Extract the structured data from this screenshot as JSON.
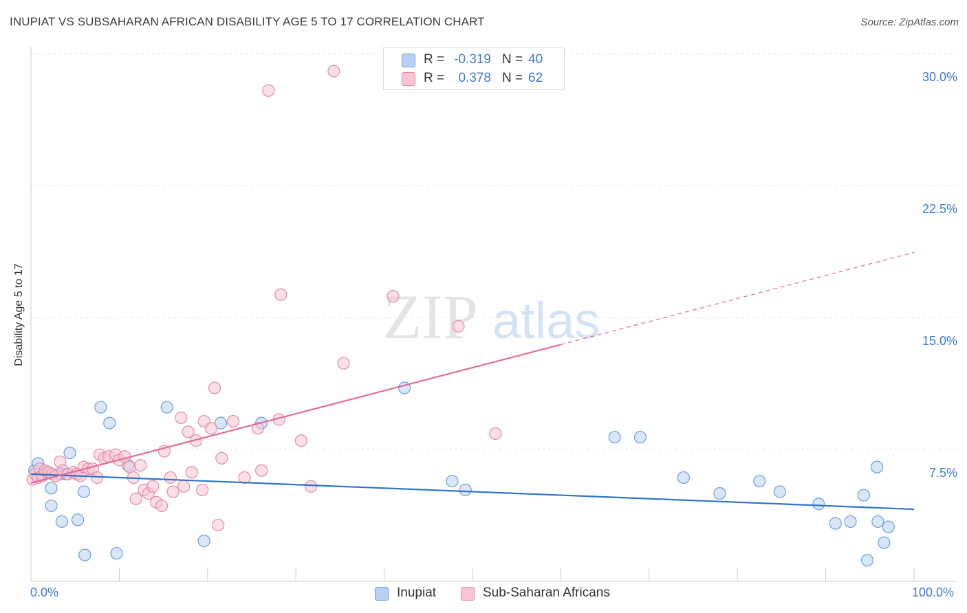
{
  "header": {
    "title": "INUPIAT VS SUBSAHARAN AFRICAN DISABILITY AGE 5 TO 17 CORRELATION CHART",
    "source": "Source: ZipAtlas.com"
  },
  "watermark": {
    "zip": "ZIP",
    "atlas": "atlas"
  },
  "legend_top": {
    "rows": [
      {
        "r_label": "R =",
        "r_value": "-0.319",
        "n_label": "N =",
        "n_value": "40"
      },
      {
        "r_label": "R =",
        "r_value": "0.378",
        "n_label": "N =",
        "n_value": "62"
      }
    ]
  },
  "legend_bottom": {
    "items": [
      "Inupiat",
      "Sub-Saharan Africans"
    ]
  },
  "colors": {
    "inupiat_fill": "#b8d1f3",
    "inupiat_stroke": "#6a9de0",
    "inupiat_line": "#2f74c9",
    "ssa_fill": "#f8c4d3",
    "ssa_stroke": "#e88aa8",
    "ssa_line": "#e36a94",
    "tick_text": "#3d7bd4",
    "grid": "#e2e2e2"
  },
  "chart_data": {
    "type": "scatter",
    "title": "INUPIAT VS SUBSAHARAN AFRICAN DISABILITY AGE 5 TO 17 CORRELATION CHART",
    "xlabel": "",
    "ylabel": "Disability Age 5 to 17",
    "xlim": [
      0,
      100
    ],
    "ylim": [
      0,
      30
    ],
    "x_tick_labels": [
      "0.0%",
      "100.0%"
    ],
    "y_ticks": [
      7.5,
      15.0,
      22.5,
      30.0
    ],
    "y_tick_labels": [
      "7.5%",
      "15.0%",
      "22.5%",
      "30.0%"
    ],
    "grid": true,
    "legend_placement": "bottom-center",
    "series": [
      {
        "name": "Inupiat",
        "r": -0.319,
        "n": 40,
        "trend": {
          "x": [
            0,
            100
          ],
          "y": [
            6.1,
            4.1
          ],
          "dashed_from_x": null
        },
        "points": [
          {
            "x": 0.4,
            "y": 6.3
          },
          {
            "x": 0.8,
            "y": 6.7
          },
          {
            "x": 1.2,
            "y": 6.0
          },
          {
            "x": 1.8,
            "y": 6.2
          },
          {
            "x": 2.3,
            "y": 4.3
          },
          {
            "x": 2.3,
            "y": 5.3
          },
          {
            "x": 3.3,
            "y": 6.1
          },
          {
            "x": 3.5,
            "y": 3.4
          },
          {
            "x": 4.0,
            "y": 6.1
          },
          {
            "x": 4.4,
            "y": 7.3
          },
          {
            "x": 5.2,
            "y": 6.1
          },
          {
            "x": 5.3,
            "y": 3.5
          },
          {
            "x": 6.0,
            "y": 5.1
          },
          {
            "x": 6.1,
            "y": 1.5
          },
          {
            "x": 7.9,
            "y": 9.9
          },
          {
            "x": 8.9,
            "y": 9.0
          },
          {
            "x": 9.7,
            "y": 1.6
          },
          {
            "x": 11.0,
            "y": 6.6
          },
          {
            "x": 15.4,
            "y": 9.9
          },
          {
            "x": 19.6,
            "y": 2.3
          },
          {
            "x": 21.5,
            "y": 9.0
          },
          {
            "x": 26.1,
            "y": 9.0
          },
          {
            "x": 42.3,
            "y": 11.0
          },
          {
            "x": 47.7,
            "y": 5.7
          },
          {
            "x": 49.2,
            "y": 5.2
          },
          {
            "x": 66.1,
            "y": 8.2
          },
          {
            "x": 69.0,
            "y": 8.2
          },
          {
            "x": 73.9,
            "y": 5.9
          },
          {
            "x": 78.0,
            "y": 5.0
          },
          {
            "x": 82.5,
            "y": 5.7
          },
          {
            "x": 84.8,
            "y": 5.1
          },
          {
            "x": 89.2,
            "y": 4.4
          },
          {
            "x": 91.1,
            "y": 3.3
          },
          {
            "x": 92.8,
            "y": 3.4
          },
          {
            "x": 94.3,
            "y": 4.9
          },
          {
            "x": 94.7,
            "y": 1.2
          },
          {
            "x": 95.9,
            "y": 3.4
          },
          {
            "x": 96.6,
            "y": 2.2
          },
          {
            "x": 97.1,
            "y": 3.1
          },
          {
            "x": 95.8,
            "y": 6.5
          }
        ]
      },
      {
        "name": "Sub-Saharan Africans",
        "r": 0.378,
        "n": 62,
        "trend": {
          "x": [
            0,
            100
          ],
          "y": [
            5.6,
            18.7
          ],
          "dashed_from_x": 60
        },
        "points": [
          {
            "x": 0.2,
            "y": 5.8
          },
          {
            "x": 0.5,
            "y": 6.1
          },
          {
            "x": 0.8,
            "y": 5.9
          },
          {
            "x": 1.0,
            "y": 6.4
          },
          {
            "x": 1.3,
            "y": 6.0
          },
          {
            "x": 1.6,
            "y": 6.3
          },
          {
            "x": 2.0,
            "y": 6.2
          },
          {
            "x": 2.4,
            "y": 6.1
          },
          {
            "x": 2.8,
            "y": 6.0
          },
          {
            "x": 3.3,
            "y": 6.8
          },
          {
            "x": 3.6,
            "y": 6.3
          },
          {
            "x": 4.2,
            "y": 6.1
          },
          {
            "x": 4.8,
            "y": 6.2
          },
          {
            "x": 5.2,
            "y": 6.1
          },
          {
            "x": 5.6,
            "y": 6.0
          },
          {
            "x": 6.0,
            "y": 6.5
          },
          {
            "x": 6.5,
            "y": 6.4
          },
          {
            "x": 7.0,
            "y": 6.4
          },
          {
            "x": 7.5,
            "y": 5.9
          },
          {
            "x": 7.8,
            "y": 7.2
          },
          {
            "x": 8.3,
            "y": 7.0
          },
          {
            "x": 8.8,
            "y": 7.1
          },
          {
            "x": 9.6,
            "y": 7.2
          },
          {
            "x": 10.0,
            "y": 6.9
          },
          {
            "x": 10.6,
            "y": 7.1
          },
          {
            "x": 11.2,
            "y": 6.5
          },
          {
            "x": 11.6,
            "y": 5.9
          },
          {
            "x": 11.9,
            "y": 4.7
          },
          {
            "x": 12.4,
            "y": 6.6
          },
          {
            "x": 12.8,
            "y": 5.2
          },
          {
            "x": 13.3,
            "y": 5.0
          },
          {
            "x": 13.8,
            "y": 5.4
          },
          {
            "x": 14.2,
            "y": 4.5
          },
          {
            "x": 14.8,
            "y": 4.3
          },
          {
            "x": 15.1,
            "y": 7.4
          },
          {
            "x": 15.8,
            "y": 5.9
          },
          {
            "x": 16.1,
            "y": 5.1
          },
          {
            "x": 17.0,
            "y": 9.3
          },
          {
            "x": 17.3,
            "y": 5.4
          },
          {
            "x": 17.8,
            "y": 8.5
          },
          {
            "x": 18.2,
            "y": 6.2
          },
          {
            "x": 18.7,
            "y": 8.0
          },
          {
            "x": 19.4,
            "y": 5.2
          },
          {
            "x": 19.6,
            "y": 9.1
          },
          {
            "x": 20.4,
            "y": 8.7
          },
          {
            "x": 20.8,
            "y": 11.0
          },
          {
            "x": 21.2,
            "y": 3.2
          },
          {
            "x": 21.6,
            "y": 7.0
          },
          {
            "x": 22.9,
            "y": 9.1
          },
          {
            "x": 24.2,
            "y": 5.9
          },
          {
            "x": 25.7,
            "y": 8.7
          },
          {
            "x": 26.1,
            "y": 6.3
          },
          {
            "x": 26.9,
            "y": 27.9
          },
          {
            "x": 28.1,
            "y": 9.2
          },
          {
            "x": 28.3,
            "y": 16.3
          },
          {
            "x": 30.6,
            "y": 8.0
          },
          {
            "x": 31.7,
            "y": 5.4
          },
          {
            "x": 34.3,
            "y": 29.0
          },
          {
            "x": 35.4,
            "y": 12.4
          },
          {
            "x": 41.0,
            "y": 16.2
          },
          {
            "x": 48.4,
            "y": 14.5
          },
          {
            "x": 52.6,
            "y": 8.4
          }
        ]
      }
    ]
  }
}
